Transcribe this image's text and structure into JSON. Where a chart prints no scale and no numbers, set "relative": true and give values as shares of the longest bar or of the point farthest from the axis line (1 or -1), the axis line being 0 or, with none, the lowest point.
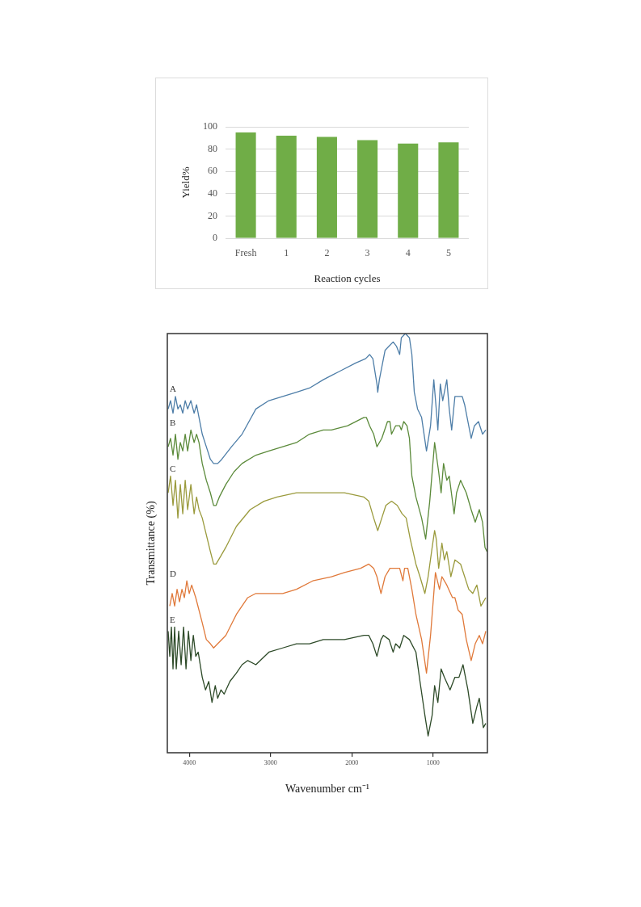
{
  "chart_data": [
    {
      "type": "bar",
      "xlabel": "Reaction cycles",
      "ylabel": "Yield%",
      "categories": [
        "Fresh",
        "1",
        "2",
        "3",
        "4",
        "5"
      ],
      "values": [
        95,
        92,
        91,
        88,
        85,
        86
      ],
      "color": "#70ad47",
      "ylim": [
        0,
        100
      ],
      "yticks": [
        0,
        20,
        40,
        60,
        80,
        100
      ],
      "grid": "y"
    },
    {
      "type": "line",
      "xlabel": "Wavenumber cm⁻¹",
      "ylabel": "Transmittance (%)",
      "relative": true,
      "xlim": [
        4270,
        330
      ],
      "xticks": [
        4000,
        3000,
        2000,
        1000
      ],
      "marker": "none",
      "series": [
        {
          "name": "A",
          "color": "#4e7ea8",
          "x": [
            4260,
            4230,
            4200,
            4170,
            4140,
            4110,
            4080,
            4050,
            4020,
            3980,
            3940,
            3910,
            3880,
            3840,
            3790,
            3740,
            3700,
            3650,
            3600,
            3480,
            3350,
            3180,
            3020,
            2850,
            2680,
            2520,
            2350,
            2250,
            2150,
            1950,
            1830,
            1780,
            1740,
            1690,
            1680,
            1660,
            1590,
            1540,
            1490,
            1450,
            1410,
            1390,
            1340,
            1290,
            1260,
            1230,
            1190,
            1140,
            1080,
            1030,
            990,
            960,
            940,
            910,
            880,
            830,
            800,
            770,
            730,
            680,
            640,
            610,
            530,
            490,
            440,
            390,
            350
          ],
          "values": [
            0.82,
            0.84,
            0.81,
            0.85,
            0.82,
            0.83,
            0.81,
            0.84,
            0.82,
            0.84,
            0.81,
            0.83,
            0.8,
            0.76,
            0.73,
            0.7,
            0.69,
            0.69,
            0.7,
            0.73,
            0.76,
            0.82,
            0.84,
            0.85,
            0.86,
            0.87,
            0.89,
            0.9,
            0.91,
            0.93,
            0.94,
            0.95,
            0.94,
            0.88,
            0.86,
            0.89,
            0.96,
            0.97,
            0.98,
            0.97,
            0.95,
            0.99,
            1,
            0.99,
            0.95,
            0.86,
            0.82,
            0.8,
            0.72,
            0.78,
            0.89,
            0.82,
            0.77,
            0.88,
            0.84,
            0.89,
            0.82,
            0.77,
            0.85,
            0.85,
            0.85,
            0.83,
            0.75,
            0.78,
            0.79,
            0.76,
            0.77
          ]
        },
        {
          "name": "B",
          "color": "#5b8a3a",
          "x": [
            4260,
            4230,
            4200,
            4170,
            4140,
            4110,
            4080,
            4050,
            4020,
            3980,
            3940,
            3910,
            3880,
            3840,
            3790,
            3740,
            3700,
            3670,
            3630,
            3550,
            3450,
            3350,
            3180,
            3020,
            2850,
            2680,
            2520,
            2350,
            2250,
            2050,
            1850,
            1820,
            1780,
            1730,
            1690,
            1630,
            1560,
            1530,
            1510,
            1460,
            1410,
            1390,
            1360,
            1320,
            1290,
            1260,
            1210,
            1140,
            1090,
            1040,
            980,
            930,
            900,
            870,
            830,
            800,
            740,
            710,
            660,
            590,
            530,
            480,
            430,
            390,
            360,
            335
          ],
          "values": [
            0.73,
            0.75,
            0.71,
            0.76,
            0.7,
            0.74,
            0.72,
            0.76,
            0.72,
            0.77,
            0.74,
            0.76,
            0.74,
            0.69,
            0.65,
            0.62,
            0.59,
            0.59,
            0.61,
            0.64,
            0.67,
            0.69,
            0.71,
            0.72,
            0.73,
            0.74,
            0.76,
            0.77,
            0.77,
            0.78,
            0.8,
            0.8,
            0.78,
            0.76,
            0.73,
            0.75,
            0.79,
            0.79,
            0.76,
            0.78,
            0.78,
            0.77,
            0.79,
            0.78,
            0.75,
            0.66,
            0.61,
            0.56,
            0.51,
            0.6,
            0.74,
            0.67,
            0.62,
            0.69,
            0.65,
            0.66,
            0.57,
            0.62,
            0.65,
            0.62,
            0.58,
            0.55,
            0.58,
            0.55,
            0.49,
            0.48
          ]
        },
        {
          "name": "C",
          "color": "#9a9a3c",
          "x": [
            4260,
            4230,
            4200,
            4170,
            4140,
            4110,
            4080,
            4050,
            4020,
            3980,
            3940,
            3910,
            3880,
            3840,
            3790,
            3740,
            3700,
            3670,
            3610,
            3550,
            3420,
            3250,
            3080,
            2920,
            2680,
            2520,
            2350,
            2090,
            1850,
            1790,
            1730,
            1680,
            1630,
            1580,
            1510,
            1440,
            1380,
            1330,
            1280,
            1210,
            1160,
            1100,
            1060,
            1010,
            980,
            960,
            930,
            890,
            860,
            830,
            780,
            730,
            660,
            560,
            510,
            460,
            410,
            350
          ],
          "values": [
            0.62,
            0.66,
            0.59,
            0.65,
            0.56,
            0.64,
            0.57,
            0.65,
            0.58,
            0.64,
            0.57,
            0.61,
            0.58,
            0.56,
            0.52,
            0.48,
            0.45,
            0.45,
            0.47,
            0.49,
            0.54,
            0.58,
            0.6,
            0.61,
            0.62,
            0.62,
            0.62,
            0.62,
            0.61,
            0.6,
            0.56,
            0.53,
            0.56,
            0.59,
            0.6,
            0.59,
            0.57,
            0.56,
            0.51,
            0.45,
            0.42,
            0.38,
            0.42,
            0.49,
            0.53,
            0.51,
            0.44,
            0.5,
            0.46,
            0.48,
            0.42,
            0.46,
            0.45,
            0.39,
            0.38,
            0.4,
            0.35,
            0.37
          ]
        },
        {
          "name": "D",
          "color": "#e0793a",
          "x": [
            4240,
            4210,
            4180,
            4150,
            4120,
            4090,
            4060,
            4030,
            4000,
            3970,
            3920,
            3840,
            3790,
            3740,
            3700,
            3650,
            3550,
            3420,
            3280,
            3180,
            3020,
            2850,
            2680,
            2480,
            2250,
            2090,
            1890,
            1790,
            1730,
            1690,
            1640,
            1590,
            1530,
            1460,
            1410,
            1370,
            1350,
            1310,
            1260,
            1210,
            1140,
            1080,
            1030,
            970,
            920,
            890,
            830,
            760,
            730,
            690,
            640,
            590,
            530,
            480,
            430,
            390,
            350
          ],
          "values": [
            0.35,
            0.38,
            0.35,
            0.39,
            0.36,
            0.39,
            0.37,
            0.41,
            0.38,
            0.4,
            0.37,
            0.31,
            0.27,
            0.26,
            0.25,
            0.26,
            0.28,
            0.33,
            0.37,
            0.38,
            0.38,
            0.38,
            0.39,
            0.41,
            0.42,
            0.43,
            0.44,
            0.45,
            0.44,
            0.42,
            0.38,
            0.42,
            0.44,
            0.44,
            0.44,
            0.41,
            0.44,
            0.44,
            0.39,
            0.33,
            0.27,
            0.19,
            0.28,
            0.43,
            0.39,
            0.42,
            0.4,
            0.37,
            0.37,
            0.34,
            0.33,
            0.27,
            0.22,
            0.26,
            0.28,
            0.26,
            0.29
          ]
        },
        {
          "name": "E",
          "color": "#2d4a28",
          "x": [
            4260,
            4240,
            4220,
            4200,
            4180,
            4160,
            4130,
            4100,
            4070,
            4040,
            4010,
            3980,
            3950,
            3920,
            3890,
            3840,
            3800,
            3760,
            3720,
            3680,
            3650,
            3610,
            3570,
            3500,
            3420,
            3350,
            3280,
            3180,
            3020,
            2850,
            2680,
            2520,
            2350,
            2090,
            1850,
            1790,
            1740,
            1690,
            1640,
            1610,
            1540,
            1490,
            1460,
            1410,
            1360,
            1290,
            1210,
            1160,
            1100,
            1060,
            1010,
            980,
            940,
            900,
            860,
            790,
            730,
            680,
            630,
            570,
            510,
            460,
            430,
            380,
            350
          ],
          "values": [
            0.29,
            0.23,
            0.3,
            0.2,
            0.3,
            0.2,
            0.29,
            0.21,
            0.3,
            0.2,
            0.29,
            0.22,
            0.28,
            0.23,
            0.24,
            0.18,
            0.15,
            0.17,
            0.12,
            0.16,
            0.13,
            0.15,
            0.14,
            0.17,
            0.19,
            0.21,
            0.22,
            0.21,
            0.24,
            0.25,
            0.26,
            0.26,
            0.27,
            0.27,
            0.28,
            0.28,
            0.26,
            0.23,
            0.27,
            0.28,
            0.27,
            0.24,
            0.26,
            0.25,
            0.28,
            0.27,
            0.24,
            0.17,
            0.09,
            0.04,
            0.09,
            0.16,
            0.12,
            0.2,
            0.18,
            0.15,
            0.18,
            0.18,
            0.21,
            0.15,
            0.07,
            0.11,
            0.13,
            0.06,
            0.07
          ]
        }
      ]
    }
  ]
}
